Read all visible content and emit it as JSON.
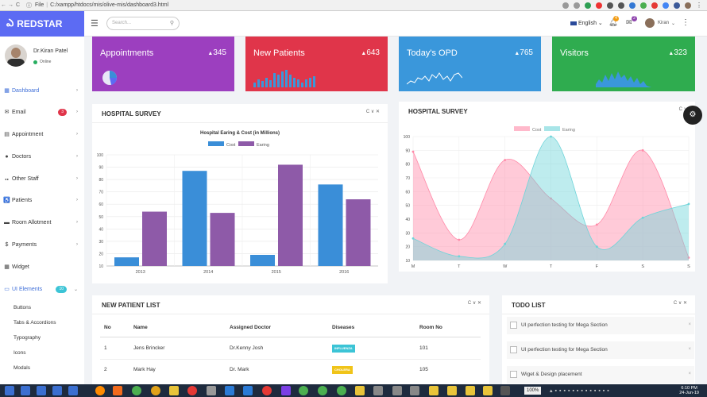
{
  "browser": {
    "nav_back": "←",
    "nav_forward": "→",
    "nav_reload": "C",
    "info": "ⓘ",
    "file_label": "File",
    "url": "C:/xampp/htdocs/mis/olive-mis/dashboard3.html"
  },
  "header": {
    "brand": "REDSTAR",
    "search_placeholder": "Search...",
    "language": "English",
    "bell_count": "4",
    "mail_count": "2",
    "user_name": "Kiran"
  },
  "profile": {
    "name": "Dr.Kiran Patel",
    "status": "Online"
  },
  "sidebar": {
    "items": [
      {
        "label": "Dashboard",
        "icon": "▦"
      },
      {
        "label": "Email",
        "icon": "✉",
        "badge": "3"
      },
      {
        "label": "Appointment",
        "icon": "▤"
      },
      {
        "label": "Doctors",
        "icon": "●"
      },
      {
        "label": "Other Staff",
        "icon": "●●"
      },
      {
        "label": "Patients",
        "icon": "♿"
      },
      {
        "label": "Room Allotment",
        "icon": "▬"
      },
      {
        "label": "Payments",
        "icon": "$"
      },
      {
        "label": "Widget",
        "icon": "▦"
      },
      {
        "label": "UI Elements",
        "icon": "▭",
        "badge": "10"
      }
    ],
    "subitems": [
      "Buttons",
      "Tabs & Accordions",
      "Typography",
      "Icons",
      "Modals"
    ]
  },
  "stats": [
    {
      "title": "Appointments",
      "value": "345",
      "color": "#9c3fbf"
    },
    {
      "title": "New Patients",
      "value": "643",
      "color": "#e0354a"
    },
    {
      "title": "Today's OPD",
      "value": "765",
      "color": "#3a97db"
    },
    {
      "title": "Visitors",
      "value": "323",
      "color": "#2fac4f"
    }
  ],
  "survey_left": {
    "heading": "HOSPITAL SURVEY",
    "tools": "C ∨ ✕"
  },
  "survey_right": {
    "heading": "HOSPITAL SURVEY",
    "tools": "C ∨"
  },
  "chart_data": [
    {
      "type": "bar",
      "title": "Hospital Earing & Cost (in Millions)",
      "categories": [
        "2013",
        "2014",
        "2015",
        "2016"
      ],
      "series": [
        {
          "name": "Cost",
          "values": [
            17,
            87,
            19,
            76
          ],
          "color": "#3a8ed8"
        },
        {
          "name": "Earing",
          "values": [
            54,
            53,
            92,
            64
          ],
          "color": "#8e5aa8"
        }
      ],
      "yticks": [
        "10",
        "20",
        "30",
        "40",
        "50",
        "60",
        "70",
        "80",
        "90",
        "100"
      ],
      "ylim": [
        10,
        100
      ]
    },
    {
      "type": "area",
      "categories": [
        "M",
        "T",
        "W",
        "T",
        "F",
        "S",
        "S"
      ],
      "series": [
        {
          "name": "Cost",
          "values": [
            89,
            25,
            83,
            55,
            36,
            90,
            12
          ],
          "color": "#ff8aa8"
        },
        {
          "name": "Earing",
          "values": [
            26,
            13,
            22,
            100,
            20,
            41,
            51
          ],
          "color": "#6ed4d9"
        }
      ],
      "yticks": [
        "10",
        "20",
        "30",
        "40",
        "50",
        "60",
        "70",
        "80",
        "90",
        "100"
      ],
      "ylim": [
        10,
        100
      ]
    }
  ],
  "patients": {
    "heading": "NEW PATIENT LIST",
    "tools": "C ∨ ✕",
    "columns": [
      "No",
      "Name",
      "Assigned Doctor",
      "Diseases",
      "Room No"
    ],
    "rows": [
      {
        "no": "1",
        "name": "Jens Brincker",
        "doctor": "Dr.Kenny Josh",
        "disease": "INFLUENZA",
        "disease_color": "#3cc4d6",
        "room": "101"
      },
      {
        "no": "2",
        "name": "Mark Hay",
        "doctor": "Dr. Mark",
        "disease": "CHOLERA",
        "disease_color": "#f0c419",
        "room": "105"
      }
    ]
  },
  "todo": {
    "heading": "TODO LIST",
    "tools": "C ∨ ✕",
    "items": [
      "UI perfection testing for Mega Section",
      "UI perfection testing for Mega Section",
      "Wiget & Design placement"
    ]
  },
  "taskbar": {
    "zoom": "100%",
    "time": "6:10 PM",
    "date": "24-Jun-19"
  }
}
